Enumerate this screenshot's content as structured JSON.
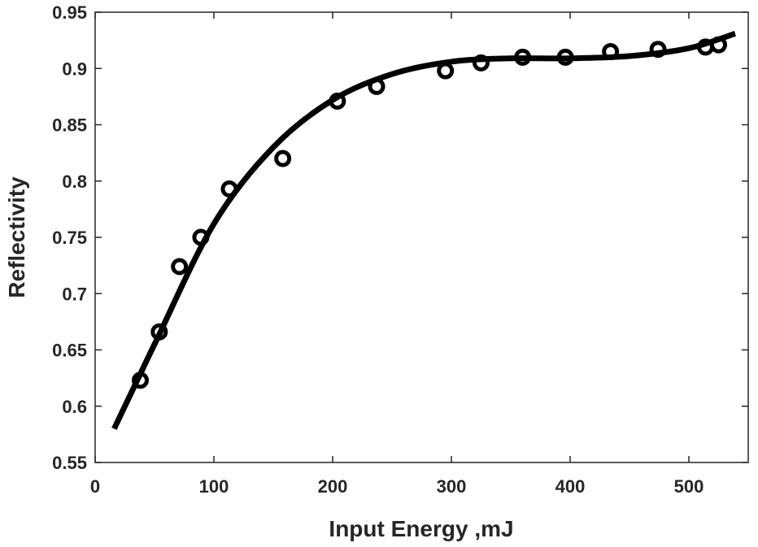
{
  "chart_data": {
    "type": "scatter",
    "title": "",
    "xlabel": "Input Energy ,mJ",
    "ylabel": "Reflectivity",
    "xlim": [
      0,
      550
    ],
    "ylim": [
      0.55,
      0.95
    ],
    "xticks": [
      "0",
      "100",
      "200",
      "300",
      "400",
      "500"
    ],
    "yticks": [
      "0.55",
      "0.6",
      "0.65",
      "0.7",
      "0.75",
      "0.8",
      "0.85",
      "0.9",
      "0.95"
    ],
    "grid": false,
    "colors": {
      "marks": "#000000",
      "axes": "#262626"
    },
    "series": [
      {
        "type": "scatter",
        "marker": "circle-open",
        "x": [
          38,
          54,
          71,
          89,
          113,
          158,
          204,
          237,
          295,
          325,
          360,
          396,
          434,
          474,
          514,
          525
        ],
        "y": [
          0.623,
          0.666,
          0.724,
          0.75,
          0.793,
          0.82,
          0.871,
          0.884,
          0.898,
          0.905,
          0.91,
          0.91,
          0.915,
          0.917,
          0.919,
          0.921
        ]
      },
      {
        "type": "line",
        "x": [
          16,
          50,
          100,
          150,
          200,
          250,
          300,
          350,
          400,
          450,
          500,
          539
        ],
        "y": [
          0.58,
          0.655,
          0.762,
          0.83,
          0.872,
          0.895,
          0.906,
          0.909,
          0.909,
          0.911,
          0.918,
          0.931
        ]
      }
    ]
  }
}
